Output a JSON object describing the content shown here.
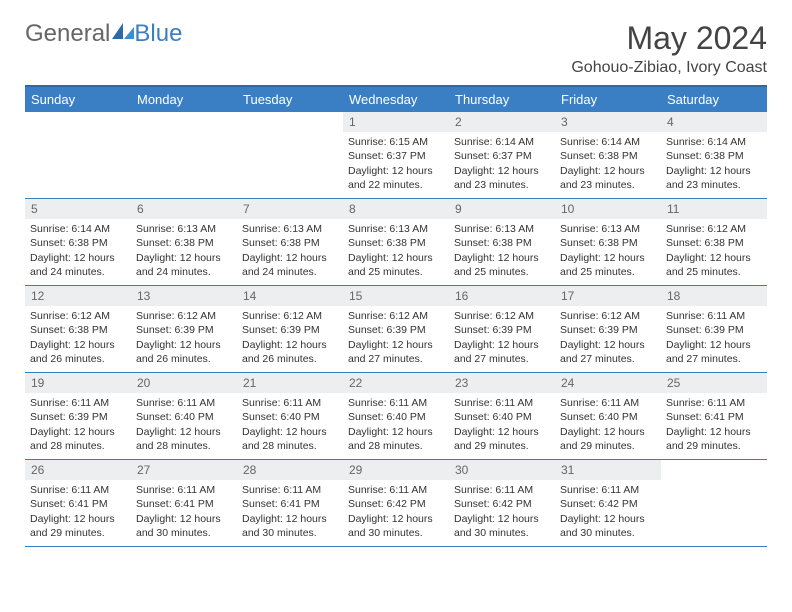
{
  "brand": {
    "part1": "General",
    "part2": "Blue"
  },
  "title": "May 2024",
  "location": "Gohouo-Zibiao, Ivory Coast",
  "dayHeaders": [
    "Sunday",
    "Monday",
    "Tuesday",
    "Wednesday",
    "Thursday",
    "Friday",
    "Saturday"
  ],
  "colors": {
    "headerBg": "#3a7fc4",
    "headerBorder": "#2a6aa8",
    "dayNumBg": "#eceef0",
    "cellBorder": "#3a7fc4",
    "text": "#333333"
  },
  "startWeekday": 3,
  "days": [
    {
      "n": 1,
      "sunrise": "6:15 AM",
      "sunset": "6:37 PM",
      "daylight": "12 hours and 22 minutes."
    },
    {
      "n": 2,
      "sunrise": "6:14 AM",
      "sunset": "6:37 PM",
      "daylight": "12 hours and 23 minutes."
    },
    {
      "n": 3,
      "sunrise": "6:14 AM",
      "sunset": "6:38 PM",
      "daylight": "12 hours and 23 minutes."
    },
    {
      "n": 4,
      "sunrise": "6:14 AM",
      "sunset": "6:38 PM",
      "daylight": "12 hours and 23 minutes."
    },
    {
      "n": 5,
      "sunrise": "6:14 AM",
      "sunset": "6:38 PM",
      "daylight": "12 hours and 24 minutes."
    },
    {
      "n": 6,
      "sunrise": "6:13 AM",
      "sunset": "6:38 PM",
      "daylight": "12 hours and 24 minutes."
    },
    {
      "n": 7,
      "sunrise": "6:13 AM",
      "sunset": "6:38 PM",
      "daylight": "12 hours and 24 minutes."
    },
    {
      "n": 8,
      "sunrise": "6:13 AM",
      "sunset": "6:38 PM",
      "daylight": "12 hours and 25 minutes."
    },
    {
      "n": 9,
      "sunrise": "6:13 AM",
      "sunset": "6:38 PM",
      "daylight": "12 hours and 25 minutes."
    },
    {
      "n": 10,
      "sunrise": "6:13 AM",
      "sunset": "6:38 PM",
      "daylight": "12 hours and 25 minutes."
    },
    {
      "n": 11,
      "sunrise": "6:12 AM",
      "sunset": "6:38 PM",
      "daylight": "12 hours and 25 minutes."
    },
    {
      "n": 12,
      "sunrise": "6:12 AM",
      "sunset": "6:38 PM",
      "daylight": "12 hours and 26 minutes."
    },
    {
      "n": 13,
      "sunrise": "6:12 AM",
      "sunset": "6:39 PM",
      "daylight": "12 hours and 26 minutes."
    },
    {
      "n": 14,
      "sunrise": "6:12 AM",
      "sunset": "6:39 PM",
      "daylight": "12 hours and 26 minutes."
    },
    {
      "n": 15,
      "sunrise": "6:12 AM",
      "sunset": "6:39 PM",
      "daylight": "12 hours and 27 minutes."
    },
    {
      "n": 16,
      "sunrise": "6:12 AM",
      "sunset": "6:39 PM",
      "daylight": "12 hours and 27 minutes."
    },
    {
      "n": 17,
      "sunrise": "6:12 AM",
      "sunset": "6:39 PM",
      "daylight": "12 hours and 27 minutes."
    },
    {
      "n": 18,
      "sunrise": "6:11 AM",
      "sunset": "6:39 PM",
      "daylight": "12 hours and 27 minutes."
    },
    {
      "n": 19,
      "sunrise": "6:11 AM",
      "sunset": "6:39 PM",
      "daylight": "12 hours and 28 minutes."
    },
    {
      "n": 20,
      "sunrise": "6:11 AM",
      "sunset": "6:40 PM",
      "daylight": "12 hours and 28 minutes."
    },
    {
      "n": 21,
      "sunrise": "6:11 AM",
      "sunset": "6:40 PM",
      "daylight": "12 hours and 28 minutes."
    },
    {
      "n": 22,
      "sunrise": "6:11 AM",
      "sunset": "6:40 PM",
      "daylight": "12 hours and 28 minutes."
    },
    {
      "n": 23,
      "sunrise": "6:11 AM",
      "sunset": "6:40 PM",
      "daylight": "12 hours and 29 minutes."
    },
    {
      "n": 24,
      "sunrise": "6:11 AM",
      "sunset": "6:40 PM",
      "daylight": "12 hours and 29 minutes."
    },
    {
      "n": 25,
      "sunrise": "6:11 AM",
      "sunset": "6:41 PM",
      "daylight": "12 hours and 29 minutes."
    },
    {
      "n": 26,
      "sunrise": "6:11 AM",
      "sunset": "6:41 PM",
      "daylight": "12 hours and 29 minutes."
    },
    {
      "n": 27,
      "sunrise": "6:11 AM",
      "sunset": "6:41 PM",
      "daylight": "12 hours and 30 minutes."
    },
    {
      "n": 28,
      "sunrise": "6:11 AM",
      "sunset": "6:41 PM",
      "daylight": "12 hours and 30 minutes."
    },
    {
      "n": 29,
      "sunrise": "6:11 AM",
      "sunset": "6:42 PM",
      "daylight": "12 hours and 30 minutes."
    },
    {
      "n": 30,
      "sunrise": "6:11 AM",
      "sunset": "6:42 PM",
      "daylight": "12 hours and 30 minutes."
    },
    {
      "n": 31,
      "sunrise": "6:11 AM",
      "sunset": "6:42 PM",
      "daylight": "12 hours and 30 minutes."
    }
  ],
  "labels": {
    "sunrise": "Sunrise:",
    "sunset": "Sunset:",
    "daylight": "Daylight:"
  }
}
